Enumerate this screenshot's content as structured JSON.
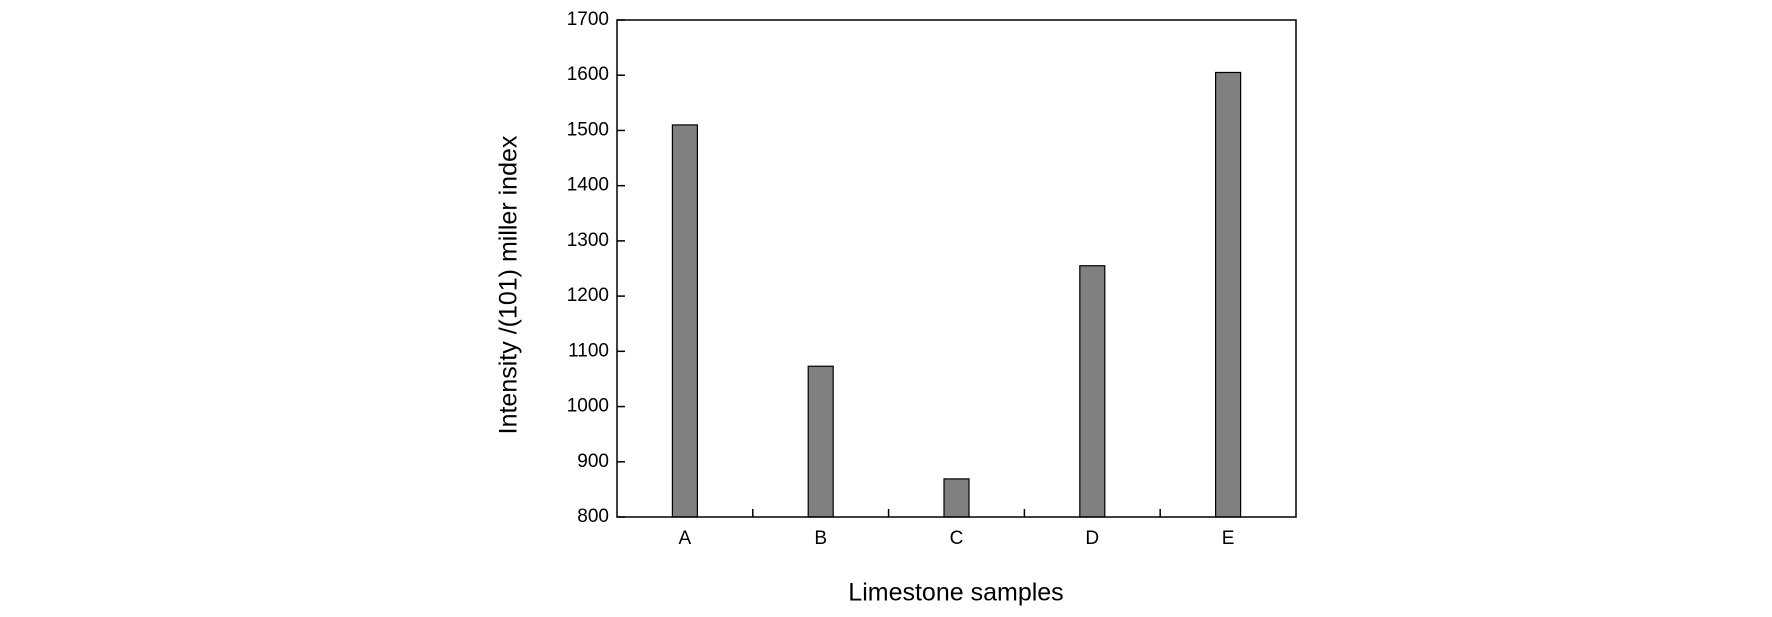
{
  "chart_data": {
    "type": "bar",
    "x_label": "Limestone samples",
    "y_label": "Intensity /(101) miller index",
    "categories": [
      "A",
      "B",
      "C",
      "D",
      "E"
    ],
    "values": [
      1510,
      1073,
      869,
      1255,
      1605
    ],
    "color": "#808080",
    "ylim": [
      800,
      1700
    ],
    "yticks": [
      800,
      900,
      1000,
      1100,
      1200,
      1300,
      1400,
      1500,
      1600,
      1700
    ],
    "grid": false
  }
}
